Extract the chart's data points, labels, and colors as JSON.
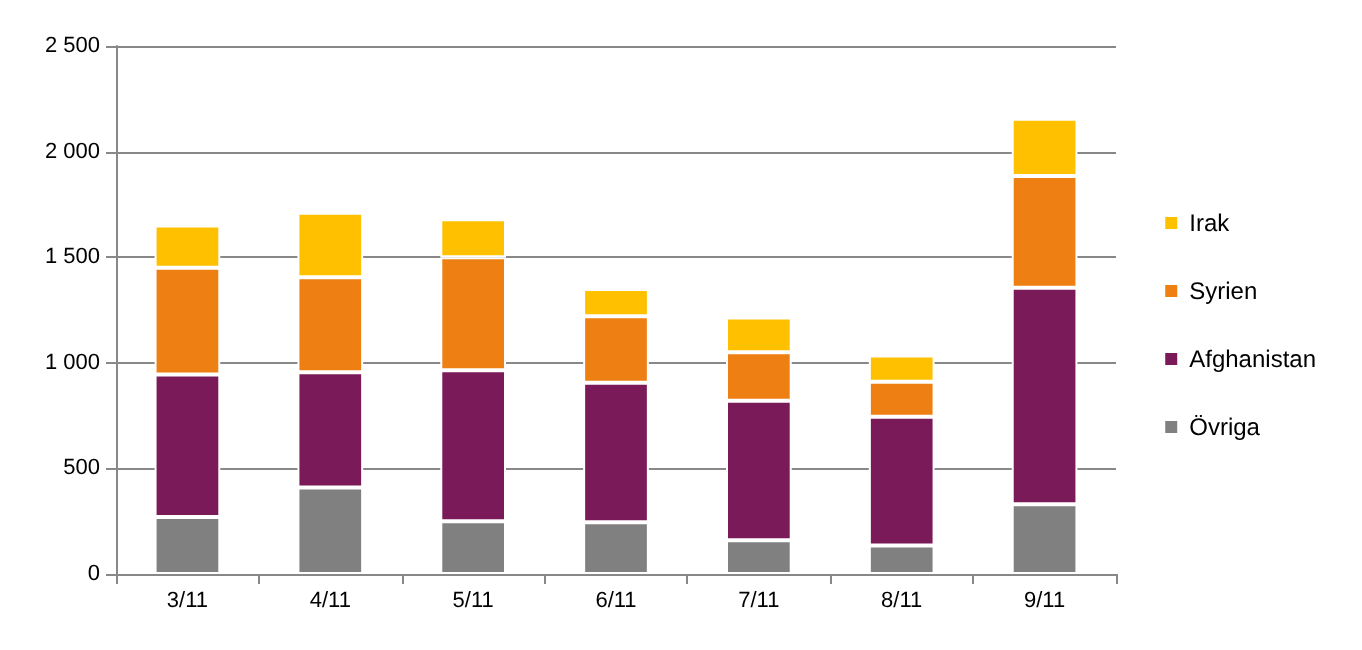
{
  "chart_data": {
    "type": "bar",
    "stacked": true,
    "categories": [
      "3/11",
      "4/11",
      "5/11",
      "6/11",
      "7/11",
      "8/11",
      "9/11"
    ],
    "series": [
      {
        "name": "Övriga",
        "color": "#808080",
        "values": [
          270,
          410,
          250,
          245,
          160,
          135,
          330
        ]
      },
      {
        "name": "Afghanistan",
        "color": "#7b1a58",
        "values": [
          675,
          545,
          715,
          660,
          660,
          610,
          1025
        ]
      },
      {
        "name": "Syrien",
        "color": "#ee7f12",
        "values": [
          505,
          450,
          535,
          315,
          230,
          165,
          530
        ]
      },
      {
        "name": "Irak",
        "color": "#ffc000",
        "values": [
          200,
          305,
          180,
          130,
          165,
          125,
          270
        ]
      }
    ],
    "ylim": [
      0,
      2500
    ],
    "yticks": [
      0,
      500,
      {
        "value": 1000,
        "label": "1 000"
      },
      {
        "value": 1500,
        "label": "1 500"
      },
      {
        "value": 2000,
        "label": "2 000"
      },
      {
        "value": 2500,
        "label": "2 500"
      }
    ],
    "grid": "y",
    "legend": "right"
  }
}
